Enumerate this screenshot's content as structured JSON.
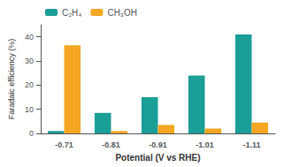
{
  "chart_data": {
    "type": "bar",
    "xlabel": "Potential (V vs RHE)",
    "ylabel": "Faradaic efficiency (%)",
    "categories": [
      "-0.71",
      "-0.81",
      "-0.91",
      "-1.01",
      "-1.11"
    ],
    "series": [
      {
        "name": "C₂H₄",
        "color": "#1A9E96",
        "values": [
          1.0,
          8.5,
          15.0,
          24.0,
          41.0
        ]
      },
      {
        "name": "CH₃OH",
        "color": "#F5A623",
        "values": [
          36.5,
          1.0,
          3.5,
          2.0,
          4.5
        ]
      }
    ],
    "ylim": [
      0,
      45
    ],
    "yticks": [
      0,
      10,
      20,
      30,
      40
    ],
    "grid": false,
    "legend": "upper left"
  }
}
